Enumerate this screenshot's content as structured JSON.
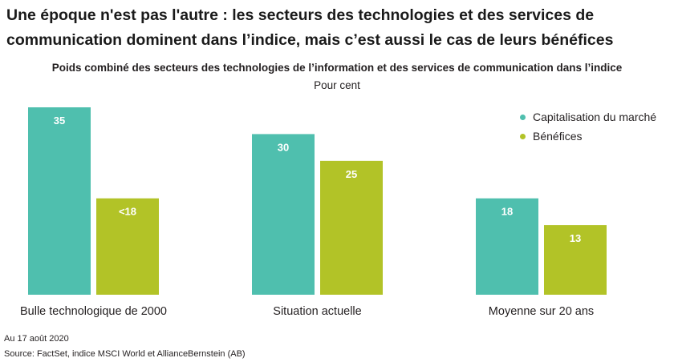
{
  "header": {
    "title": "Une époque n'est pas l'autre : les secteurs des technologies et des services de communication dominent dans l’indice, mais c’est aussi le cas de leurs bénéfices"
  },
  "chart_data": {
    "type": "bar",
    "title": "Poids combiné des secteurs des technologies de l’information et des services de communication dans l’indice",
    "unit": "Pour cent",
    "categories": [
      "Bulle technologique de 2000",
      "Situation actuelle",
      "Moyenne sur 20 ans"
    ],
    "series": [
      {
        "name": "Capitalisation du marché",
        "color": "#4fbfae",
        "values": [
          35,
          30,
          18
        ],
        "labels": [
          "35",
          "30",
          "18"
        ]
      },
      {
        "name": "Bénéfices",
        "color": "#b2c327",
        "values": [
          18,
          25,
          13
        ],
        "labels": [
          "<18",
          "25",
          "13"
        ]
      }
    ],
    "ylim": [
      0,
      35
    ],
    "grid": false,
    "legend": "top-right"
  },
  "footer": {
    "date": "Au 17 août 2020",
    "source": "Source: FactSet, indice MSCI World et AllianceBernstein (AB)"
  }
}
